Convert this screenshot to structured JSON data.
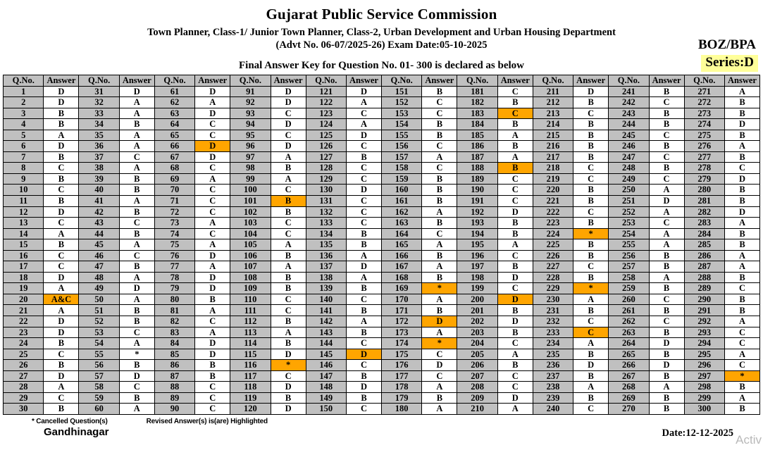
{
  "page": {
    "title": "Gujarat Public Service Commission",
    "subtitle": "Town Planner, Class-1/ Junior Town Planner, Class-2, Urban Development and Urban Housing Department",
    "advt_line": "(Advt No. 06-07/2025-26) Exam Date:05-10-2025",
    "paper_code": "BOZ/BPA",
    "series": "Series:D",
    "announcement": "Final Answer Key for Question No. 01- 300 is declared as below"
  },
  "table": {
    "qno_header": "Q.No.",
    "answer_header": "Answer",
    "column_pairs": 10,
    "rows_per_column": 30,
    "answers": [
      "D",
      "D",
      "B",
      "B",
      "A",
      "D",
      "B",
      "C",
      "B",
      "C",
      "B",
      "D",
      "C",
      "A",
      "B",
      "C",
      "C",
      "D",
      "A",
      "A&C",
      "A",
      "D",
      "D",
      "B",
      "C",
      "B",
      "D",
      "A",
      "C",
      "B",
      "D",
      "A",
      "A",
      "B",
      "A",
      "A",
      "C",
      "A",
      "B",
      "B",
      "A",
      "B",
      "C",
      "B",
      "A",
      "C",
      "B",
      "A",
      "D",
      "A",
      "B",
      "B",
      "C",
      "A",
      "*",
      "B",
      "D",
      "C",
      "B",
      "A",
      "D",
      "A",
      "D",
      "C",
      "C",
      "D",
      "D",
      "C",
      "A",
      "C",
      "C",
      "C",
      "A",
      "C",
      "A",
      "D",
      "A",
      "D",
      "D",
      "B",
      "A",
      "C",
      "A",
      "D",
      "D",
      "B",
      "B",
      "C",
      "C",
      "C",
      "D",
      "D",
      "C",
      "D",
      "C",
      "D",
      "A",
      "B",
      "A",
      "C",
      "B",
      "B",
      "C",
      "C",
      "A",
      "B",
      "A",
      "B",
      "B",
      "C",
      "C",
      "B",
      "A",
      "B",
      "D",
      "*",
      "C",
      "D",
      "B",
      "D",
      "D",
      "A",
      "C",
      "A",
      "D",
      "C",
      "B",
      "C",
      "C",
      "D",
      "C",
      "C",
      "C",
      "B",
      "B",
      "A",
      "D",
      "A",
      "B",
      "C",
      "B",
      "A",
      "B",
      "C",
      "D",
      "C",
      "B",
      "D",
      "B",
      "C",
      "B",
      "C",
      "C",
      "B",
      "B",
      "C",
      "A",
      "C",
      "B",
      "B",
      "B",
      "A",
      "B",
      "C",
      "A",
      "B",
      "A",
      "B",
      "*",
      "A",
      "B",
      "D",
      "A",
      "*",
      "C",
      "D",
      "C",
      "A",
      "B",
      "A",
      "C",
      "B",
      "C",
      "B",
      "A",
      "B",
      "A",
      "B",
      "C",
      "C",
      "C",
      "D",
      "B",
      "B",
      "A",
      "C",
      "B",
      "D",
      "C",
      "D",
      "B",
      "D",
      "B",
      "C",
      "A",
      "B",
      "C",
      "C",
      "D",
      "A",
      "D",
      "B",
      "C",
      "B",
      "B",
      "B",
      "B",
      "C",
      "C",
      "B",
      "B",
      "C",
      "B",
      "*",
      "B",
      "B",
      "C",
      "B",
      "*",
      "A",
      "B",
      "C",
      "C",
      "A",
      "B",
      "D",
      "B",
      "A",
      "B",
      "C",
      "B",
      "C",
      "B",
      "B",
      "C",
      "B",
      "C",
      "B",
      "C",
      "A",
      "D",
      "A",
      "C",
      "A",
      "A",
      "B",
      "B",
      "A",
      "B",
      "C",
      "B",
      "C",
      "B",
      "D",
      "B",
      "D",
      "B",
      "A",
      "B",
      "B",
      "A",
      "B",
      "B",
      "D",
      "B",
      "A",
      "B",
      "C",
      "D",
      "B",
      "B",
      "D",
      "A",
      "B",
      "B",
      "A",
      "A",
      "B",
      "C",
      "B",
      "B",
      "A",
      "C",
      "C",
      "A",
      "C",
      "*",
      "B",
      "A",
      "B"
    ],
    "highlighted_questions": [
      20,
      66,
      101,
      116,
      145,
      169,
      172,
      174,
      183,
      188,
      200,
      224,
      229,
      233,
      297
    ]
  },
  "footer": {
    "cancelled_note": "* Cancelled Question(s)",
    "revised_note": "Revised Answer(s) is(are) Highlighted",
    "location": "Gandhinagar",
    "date": "Date:12-12-2025",
    "watermark": "Activ"
  },
  "colors": {
    "highlight_orange": "#FFA500",
    "cell_gray": "#C0C0C0",
    "series_yellow": "#FFFF99"
  }
}
